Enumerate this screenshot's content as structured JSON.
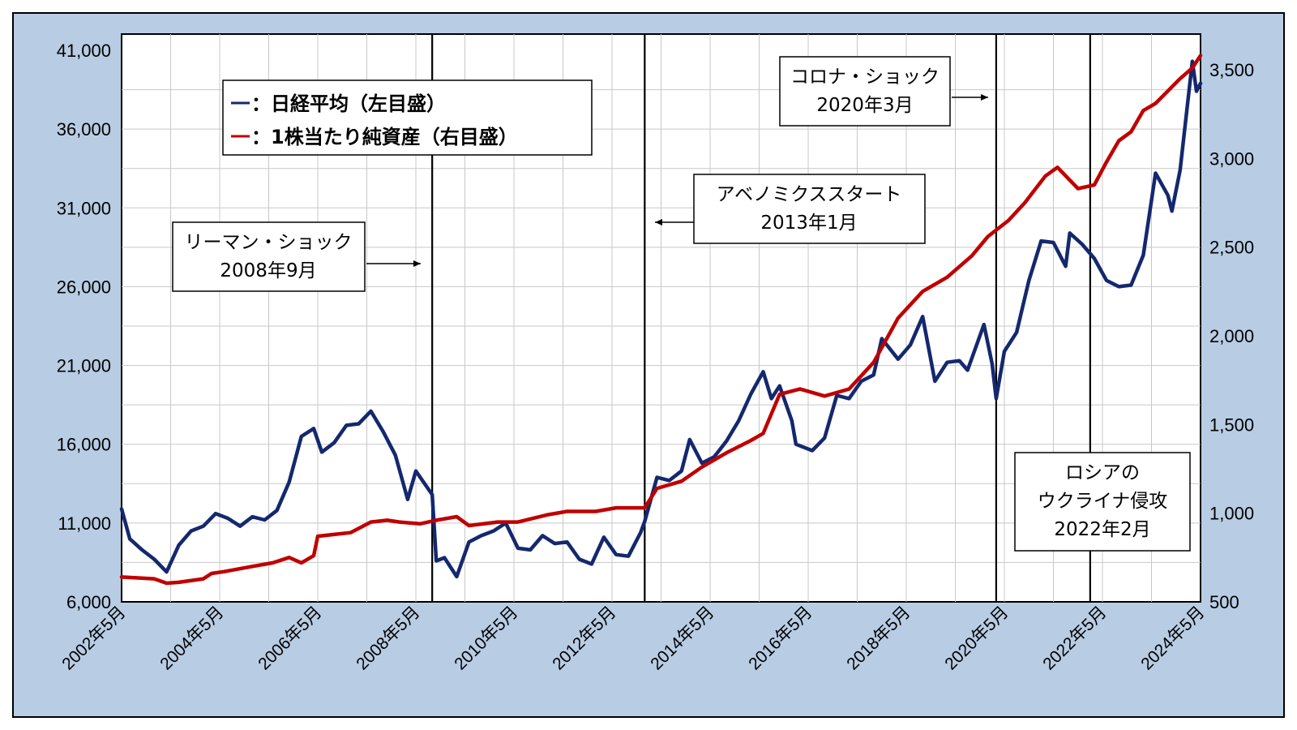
{
  "chart_data": {
    "type": "line",
    "title": "",
    "xlabel": "",
    "ylabel": "",
    "x_range": [
      "2002-05",
      "2024-05"
    ],
    "y_left_range": [
      6000,
      41000
    ],
    "y_right_range": [
      500,
      3600
    ],
    "y_left_ticks": [
      "41,000",
      "36,000",
      "31,000",
      "26,000",
      "21,000",
      "16,000",
      "11,000",
      "6,000"
    ],
    "y_right_ticks": [
      "3,500",
      "3,000",
      "2,500",
      "2,000",
      "1,500",
      "1,000",
      "500"
    ],
    "x_ticks": [
      "2002年5月",
      "2004年5月",
      "2006年5月",
      "2008年5月",
      "2010年5月",
      "2012年5月",
      "2014年5月",
      "2016年5月",
      "2018年5月",
      "2020年5月",
      "2022年5月",
      "2024年5月"
    ],
    "grid": true,
    "legend_position": "top-left",
    "series": [
      {
        "name": "：日経平均（左目盛）",
        "axis": "left",
        "color": "#14286E",
        "points": [
          [
            "2002-05",
            11900
          ],
          [
            "2002-07",
            10000
          ],
          [
            "2002-10",
            9300
          ],
          [
            "2003-01",
            8700
          ],
          [
            "2003-04",
            7900
          ],
          [
            "2003-07",
            9600
          ],
          [
            "2003-10",
            10500
          ],
          [
            "2004-01",
            10800
          ],
          [
            "2004-04",
            11600
          ],
          [
            "2004-07",
            11300
          ],
          [
            "2004-10",
            10800
          ],
          [
            "2005-01",
            11400
          ],
          [
            "2005-04",
            11200
          ],
          [
            "2005-07",
            11800
          ],
          [
            "2005-10",
            13600
          ],
          [
            "2006-01",
            16500
          ],
          [
            "2006-04",
            17000
          ],
          [
            "2006-06",
            15500
          ],
          [
            "2006-09",
            16100
          ],
          [
            "2006-12",
            17200
          ],
          [
            "2007-03",
            17300
          ],
          [
            "2007-06",
            18100
          ],
          [
            "2007-09",
            16800
          ],
          [
            "2007-12",
            15300
          ],
          [
            "2008-03",
            12500
          ],
          [
            "2008-05",
            14300
          ],
          [
            "2008-09",
            12800
          ],
          [
            "2008-10",
            8600
          ],
          [
            "2008-12",
            8800
          ],
          [
            "2009-03",
            7600
          ],
          [
            "2009-06",
            9800
          ],
          [
            "2009-09",
            10200
          ],
          [
            "2009-12",
            10500
          ],
          [
            "2010-03",
            11000
          ],
          [
            "2010-06",
            9400
          ],
          [
            "2010-09",
            9300
          ],
          [
            "2010-12",
            10200
          ],
          [
            "2011-03",
            9700
          ],
          [
            "2011-06",
            9800
          ],
          [
            "2011-09",
            8700
          ],
          [
            "2011-12",
            8400
          ],
          [
            "2012-03",
            10100
          ],
          [
            "2012-06",
            9000
          ],
          [
            "2012-09",
            8900
          ],
          [
            "2012-12",
            10400
          ],
          [
            "2013-01",
            11100
          ],
          [
            "2013-04",
            13900
          ],
          [
            "2013-07",
            13700
          ],
          [
            "2013-10",
            14300
          ],
          [
            "2013-12",
            16300
          ],
          [
            "2014-03",
            14800
          ],
          [
            "2014-06",
            15200
          ],
          [
            "2014-09",
            16200
          ],
          [
            "2014-12",
            17500
          ],
          [
            "2015-03",
            19200
          ],
          [
            "2015-06",
            20600
          ],
          [
            "2015-08",
            18900
          ],
          [
            "2015-10",
            19700
          ],
          [
            "2016-01",
            17500
          ],
          [
            "2016-02",
            16000
          ],
          [
            "2016-06",
            15600
          ],
          [
            "2016-09",
            16400
          ],
          [
            "2016-12",
            19100
          ],
          [
            "2017-03",
            18900
          ],
          [
            "2017-06",
            20000
          ],
          [
            "2017-09",
            20400
          ],
          [
            "2017-11",
            22700
          ],
          [
            "2018-03",
            21400
          ],
          [
            "2018-06",
            22300
          ],
          [
            "2018-09",
            24100
          ],
          [
            "2018-12",
            20000
          ],
          [
            "2019-03",
            21200
          ],
          [
            "2019-06",
            21300
          ],
          [
            "2019-08",
            20700
          ],
          [
            "2019-12",
            23600
          ],
          [
            "2020-02",
            21100
          ],
          [
            "2020-03",
            18900
          ],
          [
            "2020-05",
            21900
          ],
          [
            "2020-08",
            23100
          ],
          [
            "2020-11",
            26400
          ],
          [
            "2021-02",
            28900
          ],
          [
            "2021-05",
            28800
          ],
          [
            "2021-08",
            27300
          ],
          [
            "2021-09",
            29400
          ],
          [
            "2021-12",
            28700
          ],
          [
            "2022-03",
            27800
          ],
          [
            "2022-06",
            26400
          ],
          [
            "2022-09",
            26000
          ],
          [
            "2022-12",
            26100
          ],
          [
            "2023-03",
            28000
          ],
          [
            "2023-06",
            33200
          ],
          [
            "2023-09",
            31800
          ],
          [
            "2023-10",
            30800
          ],
          [
            "2023-12",
            33400
          ],
          [
            "2024-03",
            40300
          ],
          [
            "2024-04",
            38400
          ],
          [
            "2024-05",
            38900
          ]
        ]
      },
      {
        "name": "：1株当たり純資産（右目盛）",
        "axis": "right",
        "color": "#C00000",
        "points": [
          [
            "2002-05",
            640
          ],
          [
            "2003-01",
            630
          ],
          [
            "2003-04",
            605
          ],
          [
            "2003-07",
            610
          ],
          [
            "2004-01",
            630
          ],
          [
            "2004-03",
            660
          ],
          [
            "2004-06",
            670
          ],
          [
            "2005-01",
            700
          ],
          [
            "2005-06",
            720
          ],
          [
            "2005-10",
            750
          ],
          [
            "2006-01",
            720
          ],
          [
            "2006-04",
            760
          ],
          [
            "2006-05",
            870
          ],
          [
            "2006-09",
            880
          ],
          [
            "2007-01",
            890
          ],
          [
            "2007-06",
            950
          ],
          [
            "2007-10",
            960
          ],
          [
            "2008-01",
            950
          ],
          [
            "2008-06",
            940
          ],
          [
            "2008-10",
            960
          ],
          [
            "2009-03",
            980
          ],
          [
            "2009-06",
            930
          ],
          [
            "2010-01",
            950
          ],
          [
            "2010-06",
            950
          ],
          [
            "2011-01",
            990
          ],
          [
            "2011-06",
            1010
          ],
          [
            "2012-01",
            1010
          ],
          [
            "2012-06",
            1030
          ],
          [
            "2013-01",
            1030
          ],
          [
            "2013-04",
            1140
          ],
          [
            "2013-10",
            1180
          ],
          [
            "2014-03",
            1260
          ],
          [
            "2014-09",
            1340
          ],
          [
            "2015-03",
            1410
          ],
          [
            "2015-06",
            1450
          ],
          [
            "2015-10",
            1670
          ],
          [
            "2016-03",
            1700
          ],
          [
            "2016-09",
            1660
          ],
          [
            "2017-03",
            1700
          ],
          [
            "2017-09",
            1850
          ],
          [
            "2018-03",
            2100
          ],
          [
            "2018-09",
            2250
          ],
          [
            "2019-03",
            2330
          ],
          [
            "2019-09",
            2450
          ],
          [
            "2020-01",
            2560
          ],
          [
            "2020-06",
            2650
          ],
          [
            "2020-10",
            2750
          ],
          [
            "2021-03",
            2900
          ],
          [
            "2021-06",
            2950
          ],
          [
            "2021-11",
            2830
          ],
          [
            "2022-03",
            2850
          ],
          [
            "2022-06",
            2980
          ],
          [
            "2022-09",
            3100
          ],
          [
            "2022-12",
            3150
          ],
          [
            "2023-03",
            3270
          ],
          [
            "2023-06",
            3310
          ],
          [
            "2023-09",
            3380
          ],
          [
            "2023-12",
            3450
          ],
          [
            "2024-03",
            3510
          ],
          [
            "2024-05",
            3580
          ]
        ]
      }
    ],
    "annotations": [
      {
        "lines": [
          "リーマン・ショック",
          "2008年9月"
        ],
        "date": "2008-09"
      },
      {
        "lines": [
          "アベノミクススタート",
          "2013年1月"
        ],
        "date": "2013-01"
      },
      {
        "lines": [
          "コロナ・ショック",
          "2020年3月"
        ],
        "date": "2020-03"
      },
      {
        "lines": [
          "ロシアの",
          "ウクライナ侵攻",
          "2022年2月"
        ],
        "date": "2022-02"
      }
    ]
  }
}
